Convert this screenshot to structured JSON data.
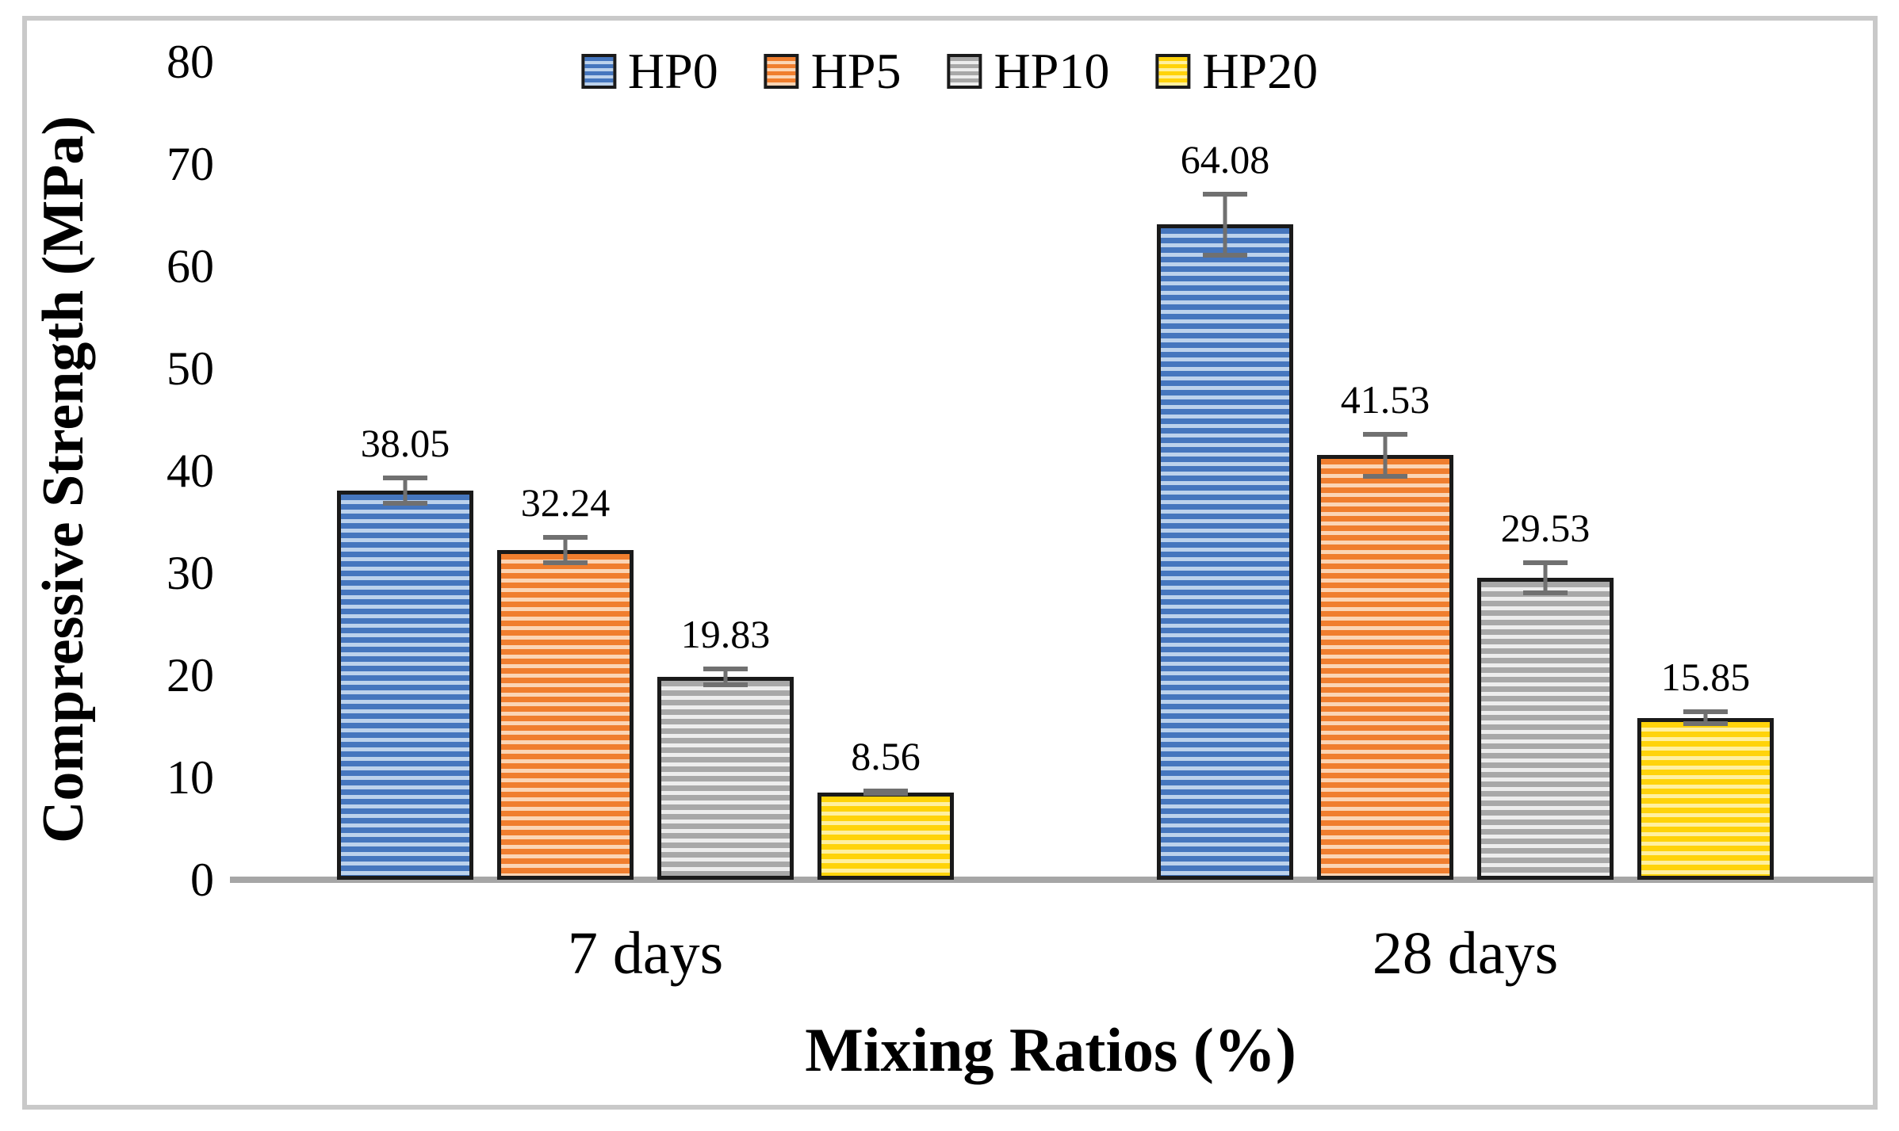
{
  "chart_data": {
    "type": "bar",
    "title": "",
    "xlabel": "Mixing Ratios (%)",
    "ylabel": "Compressive Strength (MPa)",
    "categories": [
      "7 days",
      "28 days"
    ],
    "series": [
      {
        "name": "HP0",
        "color": "#4576BE",
        "stripe": "#BCD2EC",
        "values": [
          38.05,
          64.08
        ],
        "errors": [
          1.5,
          3.2
        ]
      },
      {
        "name": "HP5",
        "color": "#F07E2E",
        "stripe": "#FBD5B5",
        "values": [
          32.24,
          41.53
        ],
        "errors": [
          1.5,
          2.3
        ]
      },
      {
        "name": "HP10",
        "color": "#A8A8A8",
        "stripe": "#EDEDED",
        "values": [
          19.83,
          29.53
        ],
        "errors": [
          1.0,
          1.7
        ]
      },
      {
        "name": "HP20",
        "color": "#FFD30A",
        "stripe": "#FFF0A0",
        "values": [
          8.56,
          15.85
        ],
        "errors": [
          0.35,
          0.8
        ]
      }
    ],
    "value_labels": [
      "38.05",
      "32.24",
      "19.83",
      "8.56",
      "64.08",
      "41.53",
      "29.53",
      "15.85"
    ],
    "y_axis": {
      "min": 0,
      "max": 80,
      "step": 10,
      "ticks": [
        "0",
        "10",
        "20",
        "30",
        "40",
        "50",
        "60",
        "70",
        "80"
      ]
    },
    "legend_position": "top-center",
    "grid": false,
    "colors": {
      "bar_border": "#1a1a1a",
      "error_bar": "#707070",
      "axis_line": "#a6a6a6",
      "frame_border": "#c9c9c9",
      "text": "#000000"
    }
  }
}
